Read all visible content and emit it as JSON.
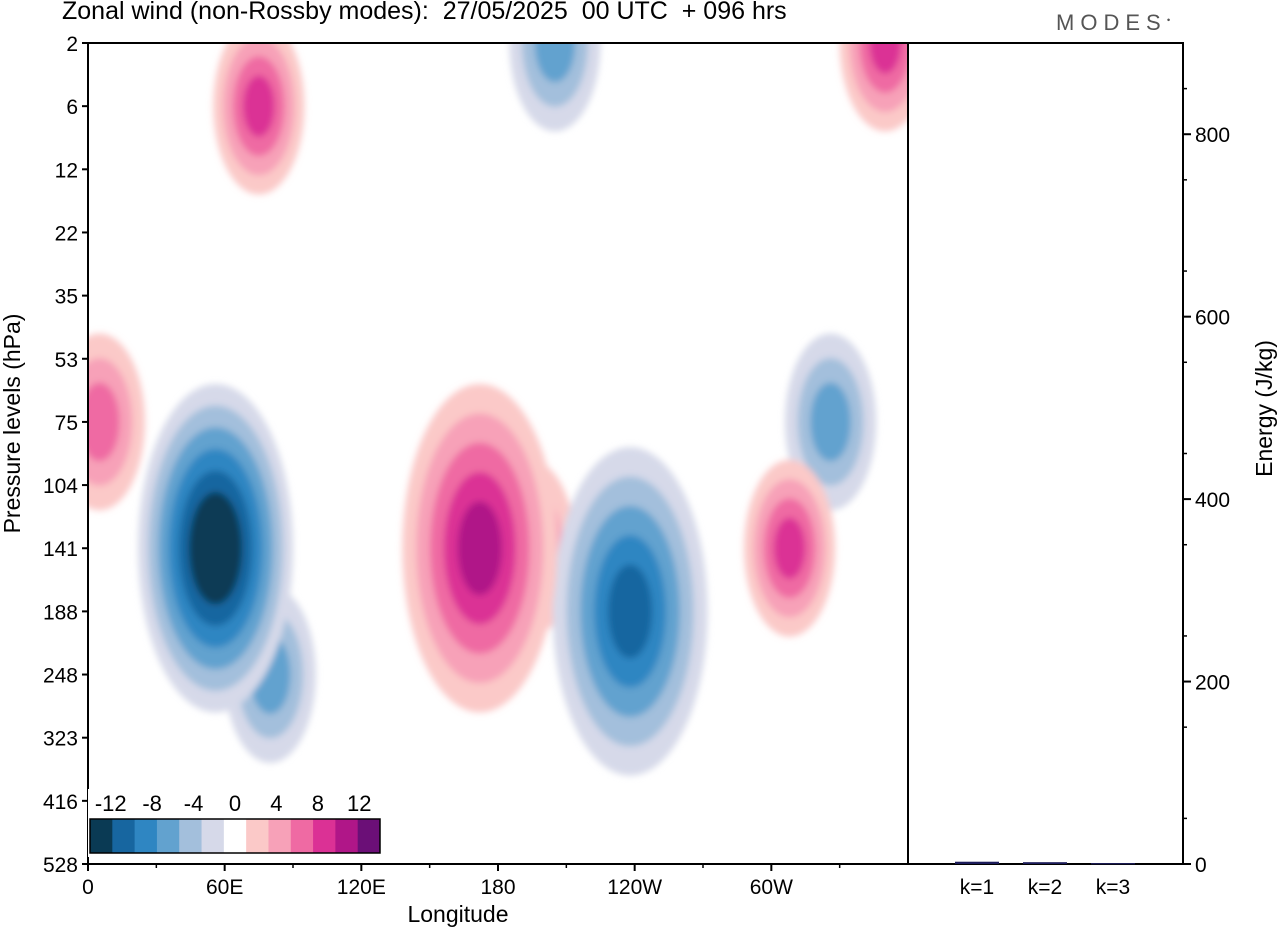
{
  "header": {
    "title": "Zonal wind (non-Rossby modes):  27/05/2025  00 UTC  + 096 hrs",
    "brand": "MODES"
  },
  "chart_data": [
    {
      "type": "heatmap",
      "title": "Zonal wind (non-Rossby modes):  27/05/2025  00 UTC  + 096 hrs",
      "xlabel": "Longitude",
      "ylabel": "Pressure levels (hPa)",
      "x_ticks": [
        "0",
        "60E",
        "120E",
        "180",
        "120W",
        "60W"
      ],
      "x_tick_values": [
        0,
        60,
        120,
        180,
        240,
        300
      ],
      "xlim": [
        0,
        360
      ],
      "y_ticks": [
        "2",
        "6",
        "12",
        "22",
        "35",
        "53",
        "75",
        "104",
        "141",
        "188",
        "248",
        "323",
        "416",
        "528"
      ],
      "y_order": "top-to-bottom",
      "colorbar": {
        "tick_labels": [
          "-12",
          "-8",
          "-4",
          "0",
          "4",
          "8",
          "12"
        ],
        "tick_values": [
          -12,
          -8,
          -4,
          0,
          4,
          8,
          12
        ],
        "levels": [
          -14,
          -12,
          -10,
          -8,
          -6,
          -4,
          -2,
          2,
          4,
          6,
          8,
          10,
          12,
          14
        ],
        "colors": [
          "#0a3a54",
          "#1766a0",
          "#2f86c2",
          "#62a2cf",
          "#a3bfdc",
          "#d6d9e9",
          "#ffffff",
          "#fbc9c8",
          "#f7a1b8",
          "#ef6aa3",
          "#db3195",
          "#b01688",
          "#6b0f77"
        ]
      },
      "features": [
        {
          "kind": "negative",
          "center_lon": 56,
          "center_level": "141",
          "peak": -14
        },
        {
          "kind": "negative",
          "center_lon": 80,
          "center_level": "248",
          "peak": -6
        },
        {
          "kind": "negative",
          "center_lon": 238,
          "center_level": "188",
          "peak": -10
        },
        {
          "kind": "negative",
          "center_lon": 326,
          "center_level": "75",
          "peak": -6
        },
        {
          "kind": "negative",
          "center_lon": 205,
          "center_level": "2",
          "peak": -6
        },
        {
          "kind": "positive",
          "center_lon": 172,
          "center_level": "141",
          "peak": 11
        },
        {
          "kind": "positive",
          "center_lon": 194,
          "center_level": "141",
          "peak": 7
        },
        {
          "kind": "positive",
          "center_lon": 308,
          "center_level": "141",
          "peak": 8
        },
        {
          "kind": "positive",
          "center_lon": 75,
          "center_level": "6",
          "peak": 8
        },
        {
          "kind": "positive",
          "center_lon": 350,
          "center_level": "2",
          "peak": 8
        },
        {
          "kind": "positive",
          "center_lon": 5,
          "center_level": "75",
          "peak": 6
        }
      ]
    },
    {
      "type": "bar",
      "ylabel": "Energy (J/kg)",
      "categories": [
        "k=1",
        "k=2",
        "k=3"
      ],
      "values": [
        2.5,
        2.0,
        1.0
      ],
      "ylim": [
        0,
        900
      ],
      "y_ticks": [
        0,
        200,
        400,
        600,
        800
      ],
      "bar_color": "#1c1c5a"
    }
  ]
}
